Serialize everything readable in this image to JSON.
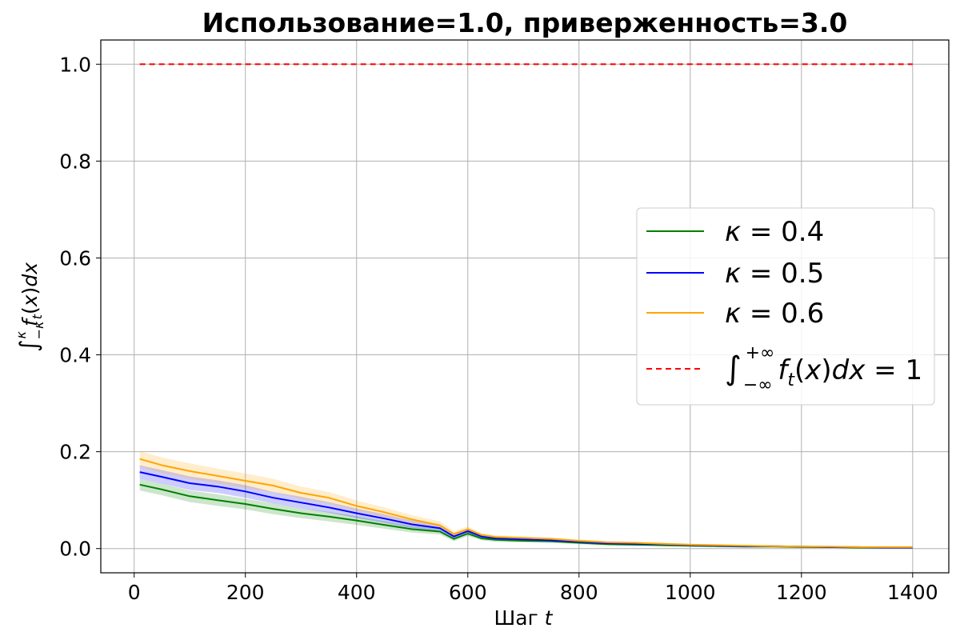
{
  "chart_data": {
    "type": "line",
    "title": "Использование=1.0, приверженность=3.0",
    "xlabel": "Шаг t",
    "ylabel": "∫_{−κ}^{κ} f_t(x)dx",
    "xlim": [
      -60,
      1465
    ],
    "ylim": [
      -0.05,
      1.05
    ],
    "xticks": [
      0,
      200,
      400,
      600,
      800,
      1000,
      1200,
      1400
    ],
    "yticks": [
      0.0,
      0.2,
      0.4,
      0.6,
      0.8,
      1.0
    ],
    "grid": true,
    "legend_position": "right",
    "x": [
      10,
      50,
      100,
      150,
      200,
      250,
      300,
      350,
      400,
      450,
      500,
      550,
      575,
      600,
      625,
      650,
      700,
      750,
      800,
      850,
      900,
      950,
      1000,
      1050,
      1100,
      1150,
      1200,
      1250,
      1300,
      1350,
      1400
    ],
    "series": [
      {
        "name": "κ = 0.4",
        "color": "#008000",
        "values": [
          0.132,
          0.122,
          0.108,
          0.1,
          0.092,
          0.082,
          0.073,
          0.066,
          0.058,
          0.049,
          0.04,
          0.035,
          0.02,
          0.031,
          0.021,
          0.018,
          0.016,
          0.015,
          0.012,
          0.009,
          0.008,
          0.007,
          0.006,
          0.005,
          0.004,
          0.004,
          0.003,
          0.003,
          0.002,
          0.002,
          0.002
        ],
        "band": [
          0.012,
          0.012,
          0.012,
          0.012,
          0.011,
          0.011,
          0.01,
          0.01,
          0.009,
          0.008,
          0.007,
          0.006,
          0.005,
          0.005,
          0.004,
          0.004,
          0.003,
          0.003,
          0.003,
          0.002,
          0.002,
          0.002,
          0.002,
          0.002,
          0.001,
          0.001,
          0.001,
          0.001,
          0.001,
          0.001,
          0.001
        ]
      },
      {
        "name": "κ = 0.5",
        "color": "#0000ff",
        "values": [
          0.158,
          0.148,
          0.135,
          0.128,
          0.118,
          0.105,
          0.095,
          0.085,
          0.073,
          0.062,
          0.05,
          0.042,
          0.025,
          0.036,
          0.025,
          0.021,
          0.019,
          0.017,
          0.014,
          0.011,
          0.01,
          0.009,
          0.007,
          0.006,
          0.005,
          0.005,
          0.004,
          0.003,
          0.003,
          0.002,
          0.002
        ],
        "band": [
          0.014,
          0.014,
          0.014,
          0.013,
          0.013,
          0.012,
          0.012,
          0.011,
          0.01,
          0.009,
          0.008,
          0.007,
          0.005,
          0.005,
          0.004,
          0.004,
          0.003,
          0.003,
          0.003,
          0.002,
          0.002,
          0.002,
          0.002,
          0.002,
          0.001,
          0.001,
          0.001,
          0.001,
          0.001,
          0.001,
          0.001
        ]
      },
      {
        "name": "κ = 0.6",
        "color": "#ffa500",
        "values": [
          0.185,
          0.172,
          0.16,
          0.15,
          0.14,
          0.13,
          0.115,
          0.105,
          0.088,
          0.075,
          0.06,
          0.048,
          0.03,
          0.04,
          0.028,
          0.024,
          0.022,
          0.02,
          0.016,
          0.013,
          0.012,
          0.01,
          0.008,
          0.007,
          0.006,
          0.005,
          0.004,
          0.004,
          0.003,
          0.003,
          0.003
        ],
        "band": [
          0.016,
          0.016,
          0.016,
          0.015,
          0.015,
          0.014,
          0.013,
          0.012,
          0.011,
          0.01,
          0.009,
          0.008,
          0.006,
          0.006,
          0.004,
          0.004,
          0.003,
          0.003,
          0.003,
          0.002,
          0.002,
          0.002,
          0.002,
          0.002,
          0.001,
          0.001,
          0.001,
          0.001,
          0.001,
          0.001,
          0.001
        ]
      }
    ],
    "reference_line": {
      "name": "∫_{−∞}^{+∞} f_t(x)dx = 1",
      "color": "#ff0000",
      "style": "dashed",
      "y": 1.0,
      "x_range": [
        10,
        1400
      ]
    }
  }
}
